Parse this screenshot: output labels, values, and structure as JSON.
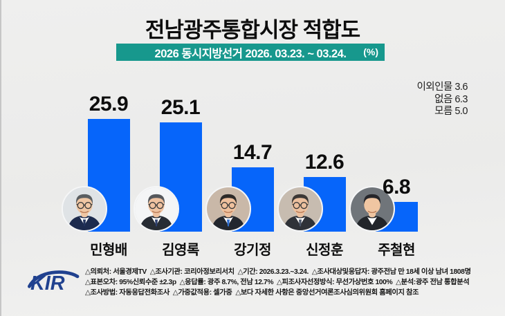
{
  "header": {
    "title": "전남광주통합시장 적합도",
    "banner": "2026 동시지방선거 2026. 03.23. ~ 03.24.",
    "unit": "(%)"
  },
  "chart_data": {
    "type": "bar",
    "title": "전남광주통합시장 적합도",
    "subtitle": "2026 동시지방선거 2026. 03.23. ~ 03.24.",
    "unit": "%",
    "categories": [
      "민형배",
      "김영록",
      "강기정",
      "신정훈",
      "주철현"
    ],
    "values": [
      25.9,
      25.1,
      14.7,
      12.6,
      6.8
    ],
    "others": [
      {
        "label": "이외인물",
        "value": 3.6
      },
      {
        "label": "없음",
        "value": 6.3
      },
      {
        "label": "모름",
        "value": 5.0
      }
    ],
    "ylim": [
      0,
      30
    ],
    "grid": false,
    "legend": "none",
    "bar_color": "#0665fa"
  },
  "candidates": [
    {
      "name": "민형배",
      "avatar": {
        "bg": "#dfe3e6",
        "hair": "#5a5e61",
        "skin": "#f0c7a4",
        "suit": "#1d2b4e",
        "shirt": "#ffffff",
        "tie": "#22335c",
        "glasses": true
      }
    },
    {
      "name": "김영록",
      "avatar": {
        "bg": "#f4f5f6",
        "hair": "#55585c",
        "skin": "#efc2a0",
        "suit": "#272c34",
        "shirt": "#ffffff",
        "tie": "#2e3f6e",
        "glasses": true
      }
    },
    {
      "name": "강기정",
      "avatar": {
        "bg": "#c9b8a8",
        "hair": "#2d2a28",
        "skin": "#eec09d",
        "suit": "#23272e",
        "shirt": "#ffffff",
        "tie": "#2f6fd0",
        "glasses": true
      }
    },
    {
      "name": "신정훈",
      "avatar": {
        "bg": "#c7bcb0",
        "hair": "#3c3835",
        "skin": "#ecc09e",
        "suit": "#2f3238",
        "shirt": "#ffffff",
        "tie": "#4a5568",
        "glasses": true
      }
    },
    {
      "name": "주철현",
      "avatar": {
        "bg": "#70757a",
        "hair": "#26262a",
        "skin": "#f0c6a2",
        "suit": "#22252a",
        "shirt": "#ffffff",
        "tie": "",
        "glasses": false
      }
    }
  ],
  "footer": {
    "logo": "KIR",
    "lines": [
      "△의뢰처: 서울경제TV  △조사기관: 코리아정보리서치  △기간: 2026.3.23.~3.24.  △조사대상및응답자: 광주전남 만 18세 이상 남녀 1808명",
      "△표본오차: 95%신뢰수준 ±2.3p  △응답률: 광주 8.7%, 전남 12.7%  △피조사자선정방식: 무선가상번호 100%  △분석:광주 전남 통합분석",
      "△조사방법: 자동응답전화조사  △가중값적용: 셀가중  △보다 자세한 사항은 중앙선거여론조사심의위원회 홈페이지 참조"
    ]
  },
  "colors": {
    "banner_bg": "#17988d",
    "bar": "#0665fa",
    "background": "#ededec",
    "logo_blue": "#20418f"
  }
}
